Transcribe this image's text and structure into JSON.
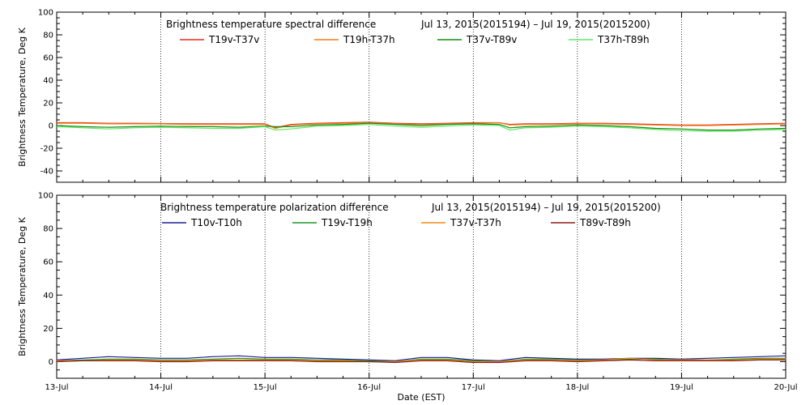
{
  "chart_data": [
    {
      "type": "line",
      "title": "Brightness temperature spectral difference",
      "date_range": "Jul 13, 2015(2015194) – Jul 19, 2015(2015200)",
      "ylabel": "Brightness Temperature, Deg K",
      "ylim": [
        -50,
        100
      ],
      "yticks": [
        -40,
        -20,
        0,
        20,
        40,
        60,
        80,
        100
      ],
      "xlim": [
        0,
        7
      ],
      "grid": "vertical-dotted",
      "legend_placement": "top",
      "x": [
        0,
        0.25,
        0.5,
        0.75,
        1,
        1.25,
        1.5,
        1.75,
        2,
        2.1,
        2.25,
        2.5,
        2.75,
        3,
        3.25,
        3.5,
        3.75,
        4,
        4.25,
        4.35,
        4.5,
        4.75,
        5,
        5.25,
        5.5,
        5.75,
        6,
        6.25,
        6.5,
        6.75,
        7
      ],
      "series": [
        {
          "name": "T19v-T37v",
          "color": "#e8281e",
          "values": [
            2.5,
            2.5,
            2,
            2,
            1.8,
            1.5,
            1.5,
            1.5,
            1.5,
            -2,
            1,
            2,
            2.5,
            3,
            2,
            1.5,
            2,
            2.5,
            2.5,
            1,
            1.5,
            1.5,
            2,
            2,
            1.5,
            1,
            0.5,
            0.5,
            1,
            1.5,
            2
          ]
        },
        {
          "name": "T19h-T37h",
          "color": "#f07d14",
          "values": [
            2,
            2,
            1.5,
            1.5,
            1.5,
            1,
            1,
            1,
            1,
            -2.5,
            0.5,
            1.5,
            2,
            2.5,
            1.5,
            1,
            1.5,
            2,
            2.5,
            0.5,
            1,
            1,
            1.5,
            1.5,
            1,
            0.5,
            0,
            0,
            0.5,
            1,
            1.5
          ]
        },
        {
          "name": "T37v-T89v",
          "color": "#148c14",
          "values": [
            0,
            -1,
            -1.5,
            -1,
            -0.5,
            -1,
            -1,
            -1.5,
            -0.5,
            -1,
            -1,
            0.5,
            1,
            2,
            1,
            0,
            1,
            1.5,
            1,
            -2,
            -1,
            -0.5,
            0.5,
            0,
            -1,
            -2.5,
            -3,
            -4,
            -4,
            -3,
            -2.5
          ]
        },
        {
          "name": "T37h-T89h",
          "color": "#64e664",
          "values": [
            -1,
            -2,
            -3,
            -2,
            -1.5,
            -2,
            -2.5,
            -2.5,
            -1,
            -4,
            -3,
            -0.5,
            0,
            1,
            -0.5,
            -1.5,
            -0.5,
            0.5,
            0,
            -4,
            -2,
            -1.5,
            -0.5,
            -1,
            -2,
            -3.5,
            -4.5,
            -5,
            -5,
            -4,
            -3.5
          ]
        }
      ]
    },
    {
      "type": "line",
      "title": "Brightness temperature polarization difference",
      "date_range": "Jul 13, 2015(2015194) – Jul 19, 2015(2015200)",
      "ylabel": "Brightness Temperature, Deg K",
      "xlabel": "Date (EST)",
      "ylim": [
        -10,
        100
      ],
      "yticks": [
        0,
        20,
        40,
        60,
        80,
        100
      ],
      "xlim": [
        0,
        7
      ],
      "xticks": [
        "13-Jul",
        "14-Jul",
        "15-Jul",
        "16-Jul",
        "17-Jul",
        "18-Jul",
        "19-Jul",
        "20-Jul"
      ],
      "grid": "vertical-dotted",
      "legend_placement": "top",
      "x": [
        0,
        0.25,
        0.5,
        0.75,
        1,
        1.25,
        1.5,
        1.75,
        2,
        2.25,
        2.5,
        2.75,
        3,
        3.25,
        3.5,
        3.75,
        4,
        4.25,
        4.5,
        4.75,
        5,
        5.25,
        5.5,
        5.75,
        6,
        6.25,
        6.5,
        6.75,
        7
      ],
      "series": [
        {
          "name": "T10v-T10h",
          "color": "#1e1e96",
          "values": [
            1,
            2,
            3,
            2.5,
            2,
            2,
            3,
            3.5,
            2.5,
            2.5,
            2,
            1.5,
            1,
            0.5,
            2.5,
            2.5,
            1,
            0.5,
            2.5,
            2,
            1.5,
            1.5,
            2,
            2,
            1.5,
            2,
            2.5,
            3,
            3.5
          ]
        },
        {
          "name": "T19v-T19h",
          "color": "#1e9628",
          "values": [
            0.5,
            1,
            1.5,
            1.5,
            1,
            1,
            1.5,
            2,
            1.5,
            1.5,
            1,
            1,
            0.5,
            0,
            1.5,
            1.5,
            0.5,
            0,
            1.5,
            1.5,
            1,
            1,
            1.5,
            1.5,
            1,
            1,
            1.5,
            2,
            2
          ]
        },
        {
          "name": "T37v-T37h",
          "color": "#f08c14",
          "values": [
            0.5,
            0.5,
            1,
            1,
            0.5,
            0.5,
            1,
            1,
            1,
            1,
            0.5,
            0.5,
            0,
            0,
            1,
            1,
            0,
            0,
            1,
            1,
            0.5,
            1,
            2,
            1,
            1,
            1,
            1,
            1.5,
            1.5
          ]
        },
        {
          "name": "T89v-T89h",
          "color": "#8c1e14",
          "values": [
            0,
            0.5,
            0.5,
            0.5,
            0,
            0,
            0.5,
            0.5,
            0.5,
            0.5,
            0,
            0,
            0,
            -0.5,
            0.5,
            0.5,
            -0.5,
            -0.5,
            0.5,
            0.5,
            0,
            0.5,
            1,
            0.5,
            0.5,
            0.5,
            0.5,
            1,
            1
          ]
        }
      ]
    }
  ]
}
